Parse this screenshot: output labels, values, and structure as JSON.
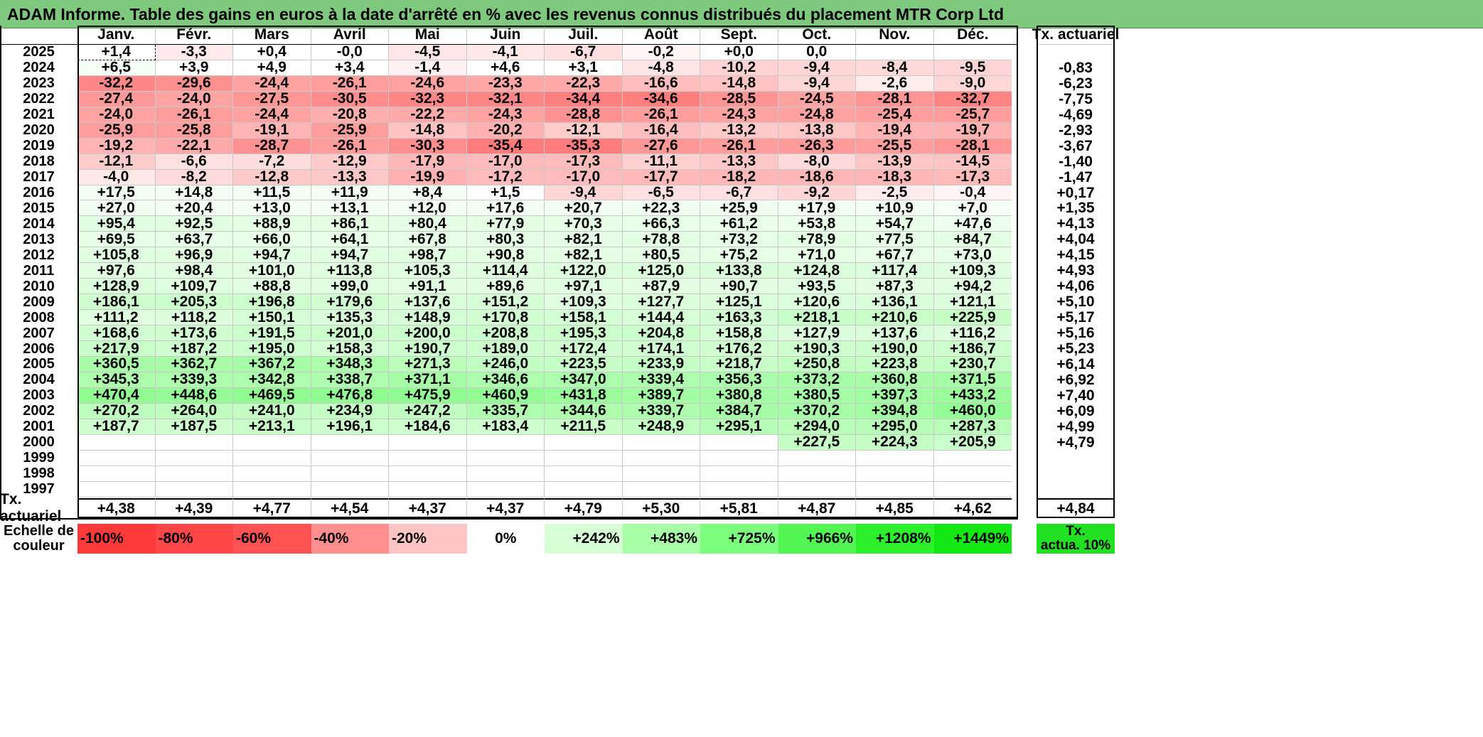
{
  "title": "ADAM Informe. Table des gains en euros à la date d'arrêté en % avec les revenus connus distribués du placement MTR Corp Ltd",
  "months": [
    "Janv.",
    "Févr.",
    "Mars",
    "Avril",
    "Mai",
    "Juin",
    "Juil.",
    "Août",
    "Sept.",
    "Oct.",
    "Nov.",
    "Déc."
  ],
  "right_header": "Tx. actuariel",
  "rows": [
    {
      "year": "2025",
      "values": [
        "+1,4",
        "-3,3",
        "+0,4",
        "-0,0",
        "-4,5",
        "-4,1",
        "-6,7",
        "-0,2",
        "+0,0",
        "0,0",
        "",
        ""
      ],
      "rate": ""
    },
    {
      "year": "2024",
      "values": [
        "+6,5",
        "+3,9",
        "+4,9",
        "+3,4",
        "-1,4",
        "+4,6",
        "+3,1",
        "-4,8",
        "-10,2",
        "-9,4",
        "-8,4",
        "-9,5"
      ],
      "rate": "-0,83"
    },
    {
      "year": "2023",
      "values": [
        "-32,2",
        "-29,6",
        "-24,4",
        "-26,1",
        "-24,6",
        "-23,3",
        "-22,3",
        "-16,6",
        "-14,8",
        "-9,4",
        "-2,6",
        "-9,0"
      ],
      "rate": "-6,23"
    },
    {
      "year": "2022",
      "values": [
        "-27,4",
        "-24,0",
        "-27,5",
        "-30,5",
        "-32,3",
        "-32,1",
        "-34,4",
        "-34,6",
        "-28,5",
        "-24,5",
        "-28,1",
        "-32,7"
      ],
      "rate": "-7,75"
    },
    {
      "year": "2021",
      "values": [
        "-24,0",
        "-26,1",
        "-24,4",
        "-20,8",
        "-22,2",
        "-24,3",
        "-28,8",
        "-26,1",
        "-24,3",
        "-24,8",
        "-25,4",
        "-25,7"
      ],
      "rate": "-4,69"
    },
    {
      "year": "2020",
      "values": [
        "-25,9",
        "-25,8",
        "-19,1",
        "-25,9",
        "-14,8",
        "-20,2",
        "-12,1",
        "-16,4",
        "-13,2",
        "-13,8",
        "-19,4",
        "-19,7"
      ],
      "rate": "-2,93"
    },
    {
      "year": "2019",
      "values": [
        "-19,2",
        "-22,1",
        "-28,7",
        "-26,1",
        "-30,3",
        "-35,4",
        "-35,3",
        "-27,6",
        "-26,1",
        "-26,3",
        "-25,5",
        "-28,1"
      ],
      "rate": "-3,67"
    },
    {
      "year": "2018",
      "values": [
        "-12,1",
        "-6,6",
        "-7,2",
        "-12,9",
        "-17,9",
        "-17,0",
        "-17,3",
        "-11,1",
        "-13,3",
        "-8,0",
        "-13,9",
        "-14,5"
      ],
      "rate": "-1,40"
    },
    {
      "year": "2017",
      "values": [
        "-4,0",
        "-8,2",
        "-12,8",
        "-13,3",
        "-19,9",
        "-17,2",
        "-17,0",
        "-17,7",
        "-18,2",
        "-18,6",
        "-18,3",
        "-17,3"
      ],
      "rate": "-1,47"
    },
    {
      "year": "2016",
      "values": [
        "+17,5",
        "+14,8",
        "+11,5",
        "+11,9",
        "+8,4",
        "+1,5",
        "-9,4",
        "-6,5",
        "-6,7",
        "-9,2",
        "-2,5",
        "-0,4"
      ],
      "rate": "+0,17"
    },
    {
      "year": "2015",
      "values": [
        "+27,0",
        "+20,4",
        "+13,0",
        "+13,1",
        "+12,0",
        "+17,6",
        "+20,7",
        "+22,3",
        "+25,9",
        "+17,9",
        "+10,9",
        "+7,0"
      ],
      "rate": "+1,35"
    },
    {
      "year": "2014",
      "values": [
        "+95,4",
        "+92,5",
        "+88,9",
        "+86,1",
        "+80,4",
        "+77,9",
        "+70,3",
        "+66,3",
        "+61,2",
        "+53,8",
        "+54,7",
        "+47,6"
      ],
      "rate": "+4,13"
    },
    {
      "year": "2013",
      "values": [
        "+69,5",
        "+63,7",
        "+66,0",
        "+64,1",
        "+67,8",
        "+80,3",
        "+82,1",
        "+78,8",
        "+73,2",
        "+78,9",
        "+77,5",
        "+84,7"
      ],
      "rate": "+4,04"
    },
    {
      "year": "2012",
      "values": [
        "+105,8",
        "+96,9",
        "+94,7",
        "+94,7",
        "+98,7",
        "+90,8",
        "+82,1",
        "+80,5",
        "+75,2",
        "+71,0",
        "+67,7",
        "+73,0"
      ],
      "rate": "+4,15"
    },
    {
      "year": "2011",
      "values": [
        "+97,6",
        "+98,4",
        "+101,0",
        "+113,8",
        "+105,3",
        "+114,4",
        "+122,0",
        "+125,0",
        "+133,8",
        "+124,8",
        "+117,4",
        "+109,3"
      ],
      "rate": "+4,93"
    },
    {
      "year": "2010",
      "values": [
        "+128,9",
        "+109,7",
        "+88,8",
        "+99,0",
        "+91,1",
        "+89,6",
        "+97,1",
        "+87,9",
        "+90,7",
        "+93,5",
        "+87,3",
        "+94,2"
      ],
      "rate": "+4,06"
    },
    {
      "year": "2009",
      "values": [
        "+186,1",
        "+205,3",
        "+196,8",
        "+179,6",
        "+137,6",
        "+151,2",
        "+109,3",
        "+127,7",
        "+125,1",
        "+120,6",
        "+136,1",
        "+121,1"
      ],
      "rate": "+5,10"
    },
    {
      "year": "2008",
      "values": [
        "+111,2",
        "+118,2",
        "+150,1",
        "+135,3",
        "+148,9",
        "+170,8",
        "+158,1",
        "+144,4",
        "+163,3",
        "+218,1",
        "+210,6",
        "+225,9"
      ],
      "rate": "+5,17"
    },
    {
      "year": "2007",
      "values": [
        "+168,6",
        "+173,6",
        "+191,5",
        "+201,0",
        "+200,0",
        "+208,8",
        "+195,3",
        "+204,8",
        "+158,8",
        "+127,9",
        "+137,6",
        "+116,2"
      ],
      "rate": "+5,16"
    },
    {
      "year": "2006",
      "values": [
        "+217,9",
        "+187,2",
        "+195,0",
        "+158,3",
        "+190,7",
        "+189,0",
        "+172,4",
        "+174,1",
        "+176,2",
        "+190,3",
        "+190,0",
        "+186,7"
      ],
      "rate": "+5,23"
    },
    {
      "year": "2005",
      "values": [
        "+360,5",
        "+362,7",
        "+367,2",
        "+348,3",
        "+271,3",
        "+246,0",
        "+223,5",
        "+233,9",
        "+218,7",
        "+250,8",
        "+223,8",
        "+230,7"
      ],
      "rate": "+6,14"
    },
    {
      "year": "2004",
      "values": [
        "+345,3",
        "+339,3",
        "+342,8",
        "+338,7",
        "+371,1",
        "+346,6",
        "+347,0",
        "+339,4",
        "+356,3",
        "+373,2",
        "+360,8",
        "+371,5"
      ],
      "rate": "+6,92"
    },
    {
      "year": "2003",
      "values": [
        "+470,4",
        "+448,6",
        "+469,5",
        "+476,8",
        "+475,9",
        "+460,9",
        "+431,8",
        "+389,7",
        "+380,8",
        "+380,5",
        "+397,3",
        "+433,2"
      ],
      "rate": "+7,40"
    },
    {
      "year": "2002",
      "values": [
        "+270,2",
        "+264,0",
        "+241,0",
        "+234,9",
        "+247,2",
        "+335,7",
        "+344,6",
        "+339,7",
        "+384,7",
        "+370,2",
        "+394,8",
        "+460,0"
      ],
      "rate": "+6,09"
    },
    {
      "year": "2001",
      "values": [
        "+187,7",
        "+187,5",
        "+213,1",
        "+196,1",
        "+184,6",
        "+183,4",
        "+211,5",
        "+248,9",
        "+295,1",
        "+294,0",
        "+295,0",
        "+287,3"
      ],
      "rate": "+4,99"
    },
    {
      "year": "2000",
      "values": [
        "",
        "",
        "",
        "",
        "",
        "",
        "",
        "",
        "",
        "+227,5",
        "+224,3",
        "+205,9"
      ],
      "rate": "+4,79"
    },
    {
      "year": "1999",
      "values": [
        "",
        "",
        "",
        "",
        "",
        "",
        "",
        "",
        "",
        "",
        "",
        ""
      ],
      "rate": ""
    },
    {
      "year": "1998",
      "values": [
        "",
        "",
        "",
        "",
        "",
        "",
        "",
        "",
        "",
        "",
        "",
        ""
      ],
      "rate": ""
    },
    {
      "year": "1997",
      "values": [
        "",
        "",
        "",
        "",
        "",
        "",
        "",
        "",
        "",
        "",
        "",
        ""
      ],
      "rate": ""
    }
  ],
  "summary": {
    "label": "Tx. actuariel",
    "values": [
      "+4,38",
      "+4,39",
      "+4,77",
      "+4,54",
      "+4,37",
      "+4,37",
      "+4,79",
      "+5,30",
      "+5,81",
      "+4,87",
      "+4,85",
      "+4,62"
    ],
    "total": "+4,84"
  },
  "scale": {
    "label_line1": "Echelle de",
    "label_line2": "couleur",
    "items": [
      {
        "text": "-100%",
        "color": "#ff3a3a",
        "align": "left"
      },
      {
        "text": "-80%",
        "color": "#ff4747",
        "align": "left"
      },
      {
        "text": "-60%",
        "color": "#ff5252",
        "align": "left"
      },
      {
        "text": "-40%",
        "color": "#ff8e8e",
        "align": "left"
      },
      {
        "text": "-20%",
        "color": "#ffc4c4",
        "align": "left"
      },
      {
        "text": "0%",
        "color": "#ffffff",
        "align": "center"
      },
      {
        "text": "+242%",
        "color": "#d6ffd6",
        "align": "right"
      },
      {
        "text": "+483%",
        "color": "#a8ffa8",
        "align": "right"
      },
      {
        "text": "+725%",
        "color": "#7cff7c",
        "align": "right"
      },
      {
        "text": "+966%",
        "color": "#52f552",
        "align": "right"
      },
      {
        "text": "+1208%",
        "color": "#2cf02c",
        "align": "right"
      },
      {
        "text": "+1449%",
        "color": "#14e814",
        "align": "right"
      }
    ],
    "right_line1": "Tx.",
    "right_line2": "actua. 10%",
    "right_color": "#22e022"
  }
}
